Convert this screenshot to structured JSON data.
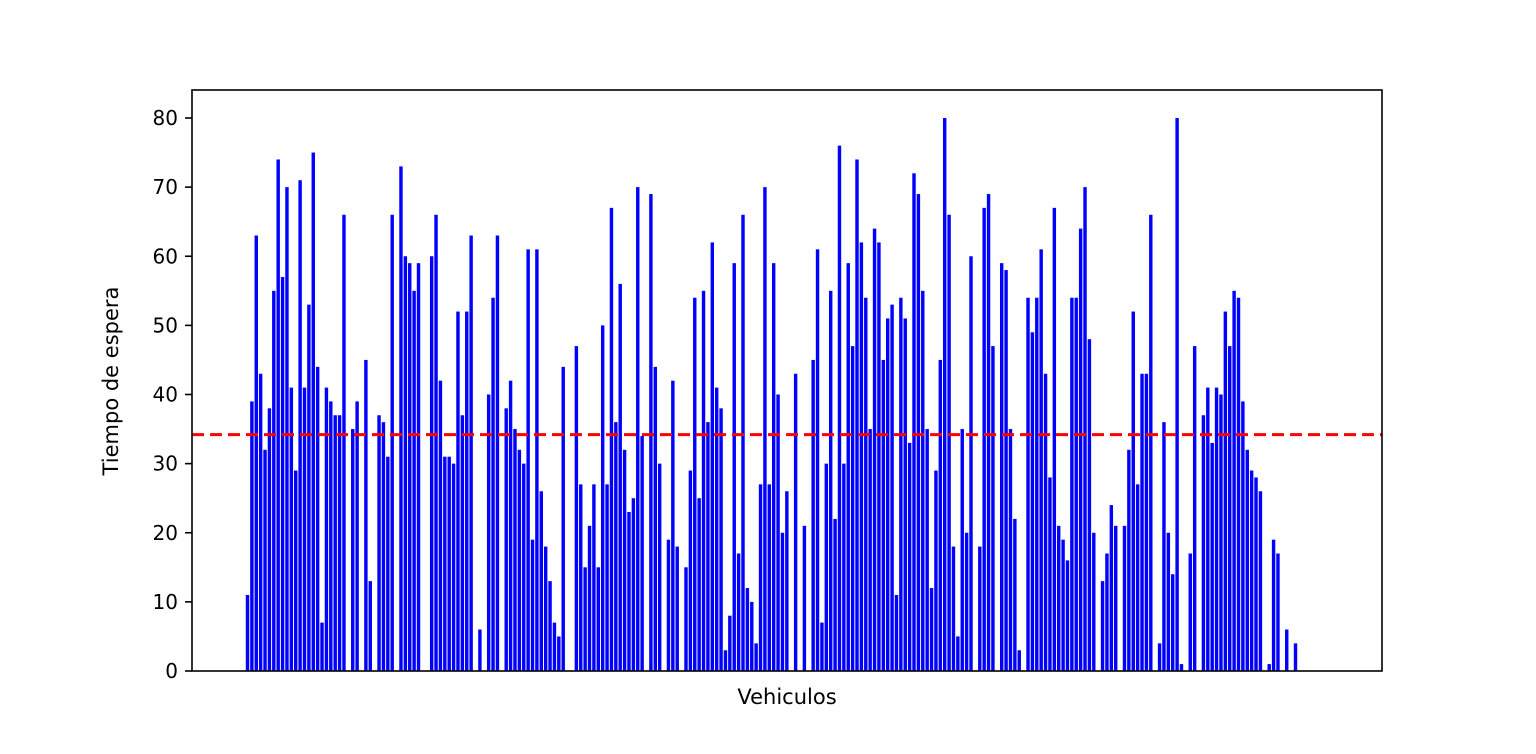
{
  "chart_data": {
    "type": "bar",
    "xlabel": "Vehiculos",
    "ylabel": "Tiempo de espera",
    "ylim": [
      0,
      84
    ],
    "yticks": [
      0,
      10,
      20,
      30,
      40,
      50,
      60,
      70,
      80
    ],
    "x_ticks_visible": false,
    "grid": false,
    "bar_color": "#0000ff",
    "reference_line": {
      "value": 34.2,
      "color": "#ff0000",
      "style": "dashed"
    },
    "values": [
      11,
      39,
      63,
      43,
      32,
      38,
      55,
      74,
      57,
      70,
      41,
      29,
      71,
      41,
      53,
      75,
      44,
      7,
      41,
      39,
      37,
      37,
      66,
      0,
      35,
      39,
      0,
      45,
      13,
      0,
      37,
      36,
      31,
      66,
      0,
      73,
      60,
      59,
      55,
      59,
      0,
      0,
      60,
      66,
      42,
      31,
      31,
      30,
      52,
      37,
      52,
      63,
      0,
      6,
      0,
      40,
      54,
      63,
      0,
      38,
      42,
      35,
      32,
      30,
      61,
      19,
      61,
      26,
      18,
      13,
      7,
      5,
      44,
      0,
      0,
      47,
      27,
      15,
      21,
      27,
      15,
      50,
      27,
      67,
      36,
      56,
      32,
      23,
      25,
      70,
      34,
      0,
      69,
      44,
      30,
      0,
      19,
      42,
      18,
      0,
      15,
      29,
      54,
      25,
      55,
      36,
      62,
      41,
      38,
      3,
      8,
      59,
      17,
      66,
      12,
      10,
      4,
      27,
      70,
      27,
      59,
      40,
      20,
      26,
      0,
      43,
      0,
      21,
      0,
      45,
      61,
      7,
      30,
      55,
      22,
      76,
      30,
      59,
      47,
      74,
      62,
      54,
      35,
      64,
      62,
      45,
      51,
      53,
      11,
      54,
      51,
      33,
      72,
      69,
      55,
      35,
      12,
      29,
      45,
      80,
      66,
      18,
      5,
      35,
      20,
      60,
      0,
      18,
      67,
      69,
      47,
      0,
      59,
      58,
      35,
      22,
      3,
      0,
      54,
      49,
      54,
      61,
      43,
      28,
      67,
      21,
      19,
      16,
      54,
      54,
      64,
      70,
      48,
      20,
      0,
      13,
      17,
      24,
      21,
      0,
      21,
      32,
      52,
      27,
      43,
      43,
      66,
      0,
      4,
      36,
      20,
      14,
      80,
      1,
      0,
      17,
      47,
      0,
      37,
      41,
      33,
      41,
      40,
      52,
      47,
      55,
      54,
      39,
      32,
      29,
      28,
      26,
      0,
      1,
      19,
      17,
      0,
      6,
      0,
      4
    ]
  }
}
